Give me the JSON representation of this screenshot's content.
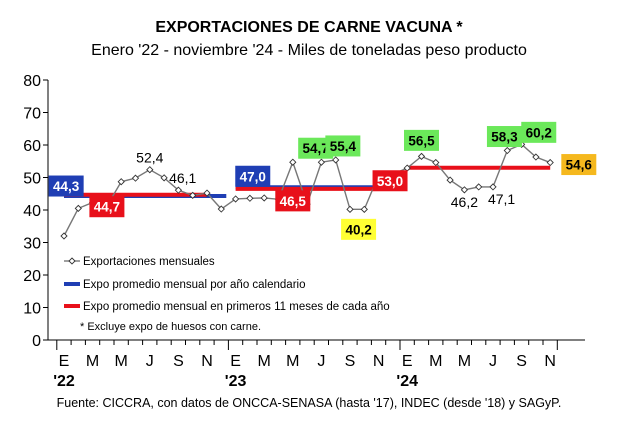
{
  "chart_data": {
    "type": "line",
    "title": "EXPORTACIONES DE CARNE VACUNA *",
    "subtitle": "Enero '22 - noviembre '24 - Miles de toneladas peso producto",
    "source": "Fuente: CICCRA, con datos de ONCCA-SENASA (hasta '17), INDEC (desde '18) y SAGyP.",
    "ylim": [
      0,
      80
    ],
    "yticks": [
      "0",
      "10",
      "20",
      "30",
      "40",
      "50",
      "60",
      "70",
      "80"
    ],
    "x_tick_labels": [
      "E",
      "M",
      "M",
      "J",
      "S",
      "N",
      "E",
      "M",
      "M",
      "J",
      "S",
      "N",
      "E",
      "M",
      "M",
      "J",
      "S",
      "N"
    ],
    "year_labels": [
      "'22",
      "'23",
      "'24"
    ],
    "grid": false,
    "legend_position": "center-left",
    "series": [
      {
        "name": "Exportaciones mensuales",
        "color": "#777777",
        "values": [
          32.0,
          40.5,
          42.3,
          41.2,
          48.7,
          49.8,
          52.4,
          49.9,
          46.1,
          44.5,
          45.2,
          40.3,
          43.4,
          43.6,
          43.7,
          43.3,
          54.7,
          41.8,
          54.7,
          55.4,
          40.2,
          40.2,
          50.7,
          51.0,
          52.9,
          56.5,
          54.6,
          49.2,
          46.2,
          47.1,
          47.1,
          58.3,
          60.2,
          56.3,
          54.6
        ]
      },
      {
        "name": "Expo promedio mensual por año calendario",
        "color": "#1f3eb4",
        "segments": [
          {
            "from": 0,
            "to": 11,
            "value": 44.3
          },
          {
            "from": 12,
            "to": 23,
            "value": 47.0
          }
        ]
      },
      {
        "name": "Expo promedio mensual en primeros 11 meses de cada año",
        "color": "#e8101a",
        "segments": [
          {
            "from": 0,
            "to": 10,
            "value": 44.7
          },
          {
            "from": 12,
            "to": 22,
            "value": 46.5
          },
          {
            "from": 24,
            "to": 34,
            "value": 53.0
          }
        ]
      }
    ],
    "annotations": [
      {
        "text": "44,3",
        "style": "blue",
        "month": 0.15,
        "y": 44.3,
        "offset": -10
      },
      {
        "text": "44,7",
        "style": "red",
        "month": 3.0,
        "y": 44.7,
        "offset": 12
      },
      {
        "text": "52,4",
        "style": "plain",
        "month": 6.0,
        "y": 52.4,
        "offset": -12
      },
      {
        "text": "46,1",
        "style": "plain",
        "month": 8.3,
        "y": 46.1,
        "offset": -12
      },
      {
        "text": "47,0",
        "style": "blue",
        "month": 13.2,
        "y": 47.0,
        "offset": -11
      },
      {
        "text": "46,5",
        "style": "red",
        "month": 16.0,
        "y": 46.5,
        "offset": 12
      },
      {
        "text": "54,7",
        "style": "green",
        "month": 17.6,
        "y": 54.7,
        "offset": -14
      },
      {
        "text": "55,4",
        "style": "green",
        "month": 19.5,
        "y": 55.4,
        "offset": -14
      },
      {
        "text": "40,2",
        "style": "yellow",
        "month": 20.6,
        "y": 40.2,
        "offset": 20
      },
      {
        "text": "53,0",
        "style": "red",
        "month": 22.8,
        "y": 53.0,
        "offset": 13
      },
      {
        "text": "56,5",
        "style": "green",
        "month": 25.0,
        "y": 56.5,
        "offset": -16
      },
      {
        "text": "46,2",
        "style": "plain",
        "month": 28.0,
        "y": 46.2,
        "offset": 12
      },
      {
        "text": "47,1",
        "style": "plain",
        "month": 30.6,
        "y": 47.1,
        "offset": 12
      },
      {
        "text": "58,3",
        "style": "green",
        "month": 30.8,
        "y": 58.3,
        "offset": -14
      },
      {
        "text": "60,2",
        "style": "green",
        "month": 33.2,
        "y": 60.2,
        "offset": -12
      },
      {
        "text": "54,6",
        "style": "orange",
        "month": 36.0,
        "y": 54.6,
        "offset": 2
      }
    ],
    "footnote": "* Excluye expo de huesos con carne."
  }
}
